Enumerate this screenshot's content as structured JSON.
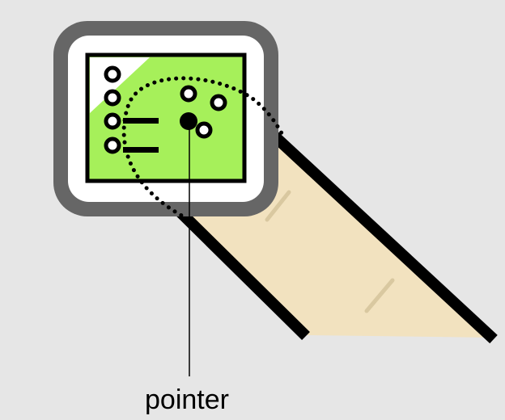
{
  "diagram": {
    "labels": {
      "pointer": "pointer"
    },
    "colors": {
      "background": "#e6e6e6",
      "screen_frame": "#666666",
      "screen_bezel": "#ffffff",
      "screen_green": "#a6f05a",
      "screen_highlight": "#ffffff",
      "strap_fill": "#f2e2bf",
      "strap_edge": "#000000",
      "strap_texture": "#d9c8a0",
      "ink": "#000000"
    },
    "icons": {
      "device": "wristwatch-device-icon",
      "map_points": "circle-marker-icon",
      "pointer_dot": "filled-dot-icon"
    }
  }
}
